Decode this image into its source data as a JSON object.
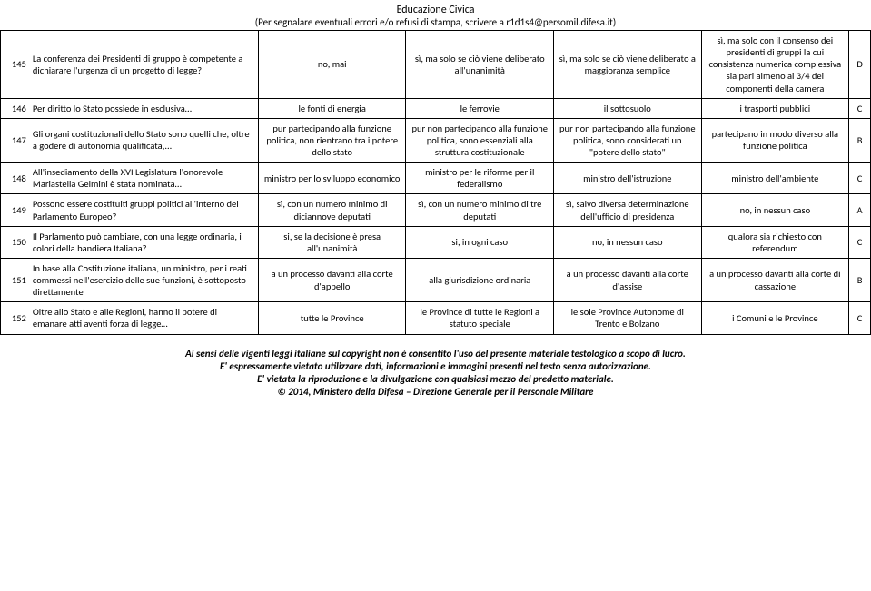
{
  "header": {
    "title": "Educazione Civica",
    "subtitle": "(Per segnalare eventuali errori e/o refusi di stampa, scrivere a r1d1s4@persomil.difesa.it)"
  },
  "rows": [
    {
      "n": "145",
      "q": "La conferenza dei Presidenti di gruppo è competente a dichiarare l'urgenza di un progetto di legge?",
      "a": "no, mai",
      "b": "sì, ma solo se ciò viene deliberato all'unanimità",
      "c": "sì, ma solo se ciò viene deliberato a maggioranza semplice",
      "d": "sì, ma solo con il consenso dei presidenti di gruppi la cui consistenza numerica complessiva sia pari almeno ai 3/4 dei componenti della camera",
      "ans": "D"
    },
    {
      "n": "146",
      "q": "Per diritto lo Stato possiede in esclusiva…",
      "a": "le fonti di energia",
      "b": "le ferrovie",
      "c": "il sottosuolo",
      "d": "i trasporti pubblici",
      "ans": "C"
    },
    {
      "n": "147",
      "q": "Gli organi costituzionali dello Stato sono quelli che, oltre a godere di autonomia qualificata,...",
      "a": "pur partecipando alla funzione politica, non rientrano tra i potere dello stato",
      "b": "pur non partecipando alla funzione politica, sono essenziali alla struttura costituzionale",
      "c": "pur non partecipando alla funzione politica, sono considerati un \"potere dello stato\"",
      "d": "partecipano in modo diverso alla funzione politica",
      "ans": "B"
    },
    {
      "n": "148",
      "q": "All'insediamento della XVI Legislatura l'onorevole Mariastella Gelmini è stata nominata…",
      "a": "ministro per lo sviluppo economico",
      "b": "ministro per le riforme per il federalismo",
      "c": "ministro dell'istruzione",
      "d": "ministro dell'ambiente",
      "ans": "C"
    },
    {
      "n": "149",
      "q": "Possono essere costituiti gruppi politici all'interno del Parlamento Europeo?",
      "a": "sì, con un numero minimo di diciannove deputati",
      "b": "sì, con un numero minimo di tre deputati",
      "c": "sì, salvo diversa determinazione dell'ufficio di presidenza",
      "d": "no, in nessun caso",
      "ans": "A"
    },
    {
      "n": "150",
      "q": "Il Parlamento può cambiare, con una legge ordinaria, i colori della bandiera Italiana?",
      "a": "si, se la decisione è presa all'unanimità",
      "b": "si, in ogni caso",
      "c": "no, in nessun caso",
      "d": "qualora sia richiesto con referendum",
      "ans": "C"
    },
    {
      "n": "151",
      "q": "In base alla Costituzione italiana, un ministro, per i reati commessi nell'esercizio delle sue funzioni, è sottoposto direttamente",
      "a": "a un processo davanti alla corte d'appello",
      "b": "alla giurisdizione ordinaria",
      "c": "a un processo davanti alla corte d'assise",
      "d": "a un processo davanti alla corte di cassazione",
      "ans": "B"
    },
    {
      "n": "152",
      "q": "Oltre allo Stato e alle Regioni, hanno il potere di emanare atti aventi forza di legge…",
      "a": "tutte le Province",
      "b": "le Province di tutte le Regioni a statuto speciale",
      "c": "le sole Province Autonome di Trento e Bolzano",
      "d": "i Comuni e le Province",
      "ans": "C"
    }
  ],
  "footer": {
    "l1": "Ai sensi delle vigenti leggi italiane sul copyright non è consentito l'uso del presente materiale testologico a scopo di lucro.",
    "l2": "E' espressamente vietato utilizzare dati, informazioni e immagini presenti nel testo senza autorizzazione.",
    "l3": "E' vietata la riproduzione e la divulgazione con qualsiasi mezzo del predetto materiale.",
    "l4": "© 2014, Ministero della Difesa – Direzione Generale per il Personale Militare"
  }
}
